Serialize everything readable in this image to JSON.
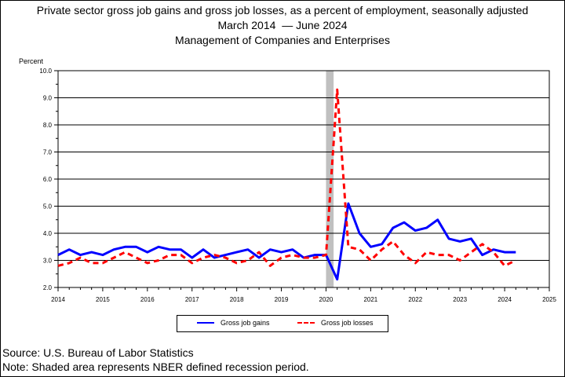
{
  "chart_data": {
    "type": "line",
    "title": "Private sector gross job gains and gross job losses, as a percent of employment, seasonally adjusted",
    "subtitle_start": "March 2014",
    "subtitle_end": "June 2024",
    "subtitle2": "Management of Companies and Enterprises",
    "ylabel": "Percent",
    "ylim": [
      2.0,
      10.0
    ],
    "xlim": [
      2014,
      2025
    ],
    "y_ticks": [
      "2.0",
      "3.0",
      "4.0",
      "5.0",
      "6.0",
      "7.0",
      "8.0",
      "9.0",
      "10.0"
    ],
    "x_ticks": [
      "2014",
      "2015",
      "2016",
      "2017",
      "2018",
      "2019",
      "2020",
      "2021",
      "2022",
      "2023",
      "2024",
      "2025"
    ],
    "grid": true,
    "legend_placement": "bottom",
    "recession_band": [
      2020.0,
      2020.17
    ],
    "series": [
      {
        "name": "Gross job gains",
        "color": "#0000ff",
        "style": "solid",
        "x": [
          2014.0,
          2014.25,
          2014.5,
          2014.75,
          2015.0,
          2015.25,
          2015.5,
          2015.75,
          2016.0,
          2016.25,
          2016.5,
          2016.75,
          2017.0,
          2017.25,
          2017.5,
          2017.75,
          2018.0,
          2018.25,
          2018.5,
          2018.75,
          2019.0,
          2019.25,
          2019.5,
          2019.75,
          2020.0,
          2020.25,
          2020.5,
          2020.75,
          2021.0,
          2021.25,
          2021.5,
          2021.75,
          2022.0,
          2022.25,
          2022.5,
          2022.75,
          2023.0,
          2023.25,
          2023.5,
          2023.75,
          2024.0,
          2024.25
        ],
        "values": [
          3.2,
          3.4,
          3.2,
          3.3,
          3.2,
          3.4,
          3.5,
          3.5,
          3.3,
          3.5,
          3.4,
          3.4,
          3.1,
          3.4,
          3.1,
          3.2,
          3.3,
          3.4,
          3.1,
          3.4,
          3.3,
          3.4,
          3.1,
          3.2,
          3.2,
          2.3,
          5.1,
          4.0,
          3.5,
          3.6,
          4.2,
          4.4,
          4.1,
          4.2,
          4.5,
          3.8,
          3.7,
          3.8,
          3.2,
          3.4,
          3.3,
          3.3
        ]
      },
      {
        "name": "Gross job losses",
        "color": "#ff0000",
        "style": "dashed",
        "x": [
          2014.0,
          2014.25,
          2014.5,
          2014.75,
          2015.0,
          2015.25,
          2015.5,
          2015.75,
          2016.0,
          2016.25,
          2016.5,
          2016.75,
          2017.0,
          2017.25,
          2017.5,
          2017.75,
          2018.0,
          2018.25,
          2018.5,
          2018.75,
          2019.0,
          2019.25,
          2019.5,
          2019.75,
          2020.0,
          2020.25,
          2020.5,
          2020.75,
          2021.0,
          2021.25,
          2021.5,
          2021.75,
          2022.0,
          2022.25,
          2022.5,
          2022.75,
          2023.0,
          2023.25,
          2023.5,
          2023.75,
          2024.0,
          2024.25
        ],
        "values": [
          2.8,
          2.9,
          3.1,
          2.9,
          2.9,
          3.1,
          3.3,
          3.1,
          2.9,
          3.0,
          3.2,
          3.2,
          2.9,
          3.1,
          3.2,
          3.1,
          2.9,
          3.0,
          3.3,
          2.8,
          3.1,
          3.2,
          3.1,
          3.1,
          3.2,
          9.3,
          3.5,
          3.4,
          3.0,
          3.4,
          3.7,
          3.2,
          2.9,
          3.3,
          3.2,
          3.2,
          3.0,
          3.3,
          3.6,
          3.3,
          2.8,
          3.0
        ]
      }
    ]
  },
  "footer": {
    "source": "Source: U.S. Bureau of Labor Statistics",
    "note": "Note: Shaded area represents NBER defined recession period."
  }
}
